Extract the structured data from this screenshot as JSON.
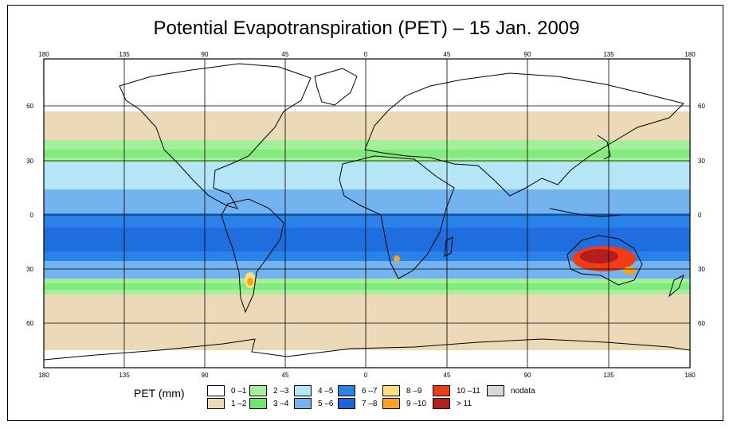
{
  "title": "Potential Evapotranspiration (PET) – 15 Jan. 2009",
  "axes": {
    "lon_labels": [
      "180",
      "135",
      "90",
      "45",
      "0",
      "45",
      "90",
      "135",
      "180"
    ],
    "lat_labels": [
      "60",
      "30",
      "0",
      "30",
      "60"
    ]
  },
  "legend": {
    "label": "PET (mm)",
    "items": [
      {
        "label": "0 –1",
        "color": "#ffffff"
      },
      {
        "label": "1 –2",
        "color": "#ecd9b8"
      },
      {
        "label": "2 –3",
        "color": "#a4f09a"
      },
      {
        "label": "3 –4",
        "color": "#6ee86a"
      },
      {
        "label": "4 –5",
        "color": "#b5e6f8"
      },
      {
        "label": "5 –6",
        "color": "#73b4f0"
      },
      {
        "label": "6 –7",
        "color": "#2a82e8"
      },
      {
        "label": "7 –8",
        "color": "#1d64dc"
      },
      {
        "label": "8 –9",
        "color": "#ffe07a"
      },
      {
        "label": "9 –10",
        "color": "#ffa01e"
      },
      {
        "label": "10 –11",
        "color": "#f03c14"
      },
      {
        "label": "> 11",
        "color": "#b41e1e"
      },
      {
        "label": "nodata",
        "color": "#d8d8d8"
      }
    ]
  }
}
